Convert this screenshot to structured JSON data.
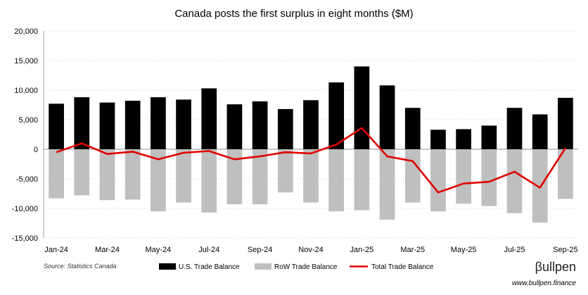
{
  "chart_data": {
    "type": "bar",
    "title": "Canada posts the first surplus in eight months ($M)",
    "xlabel": "",
    "ylabel": "",
    "ylim": [
      -15000,
      20000
    ],
    "yticks": [
      20000,
      15000,
      10000,
      5000,
      0,
      -5000,
      -10000,
      -15000
    ],
    "ytick_labels": [
      "20,000",
      "15,000",
      "10,000",
      "5,000",
      "0",
      "-5,000",
      "-10,000",
      "-15,000"
    ],
    "categories": [
      "Jan-24",
      "Feb-24",
      "Mar-24",
      "Apr-24",
      "May-24",
      "Jun-24",
      "Jul-24",
      "Aug-24",
      "Sep-24",
      "Oct-24",
      "Nov-24",
      "Dec-24",
      "Jan-25",
      "Feb-25",
      "Mar-25",
      "Apr-25",
      "May-25",
      "Jun-25",
      "Jul-25",
      "Aug-25",
      "Sep-25"
    ],
    "xtick_labels": [
      "Jan-24",
      "Mar-24",
      "May-24",
      "Jul-24",
      "Sep-24",
      "Nov-24",
      "Jan-25",
      "Mar-25",
      "May-25",
      "Jul-25",
      "Sep-25"
    ],
    "series": [
      {
        "name": "U.S. Trade Balance",
        "kind": "bar",
        "color": "#000000",
        "values": [
          7700,
          8800,
          7900,
          8200,
          8800,
          8400,
          10300,
          7600,
          8100,
          6800,
          8300,
          11300,
          14000,
          10800,
          7000,
          3300,
          3400,
          4000,
          7000,
          5900,
          8700
        ]
      },
      {
        "name": "RoW Trade Balance",
        "kind": "bar",
        "color": "#bfbfbf",
        "values": [
          -8300,
          -7800,
          -8600,
          -8500,
          -10500,
          -9000,
          -10700,
          -9300,
          -9300,
          -7300,
          -9000,
          -10500,
          -10300,
          -11900,
          -9000,
          -10500,
          -9200,
          -9600,
          -10800,
          -12400,
          -8400
        ]
      },
      {
        "name": "Total Trade Balance",
        "kind": "line",
        "color": "#e00000",
        "values": [
          -500,
          1000,
          -800,
          -400,
          -1700,
          -600,
          -300,
          -1700,
          -1200,
          -500,
          -700,
          800,
          3600,
          -1200,
          -2000,
          -7300,
          -5800,
          -5500,
          -3800,
          -6500,
          200
        ]
      }
    ],
    "legend": {
      "position": "bottom",
      "entries": [
        "U.S. Trade Balance",
        "RoW Trade Balance",
        "Total Trade Balance"
      ]
    },
    "grid": true
  },
  "source": "Source: Statistics Canada",
  "brand": {
    "name": "βullpen",
    "url": "www.bullpen.finance"
  }
}
